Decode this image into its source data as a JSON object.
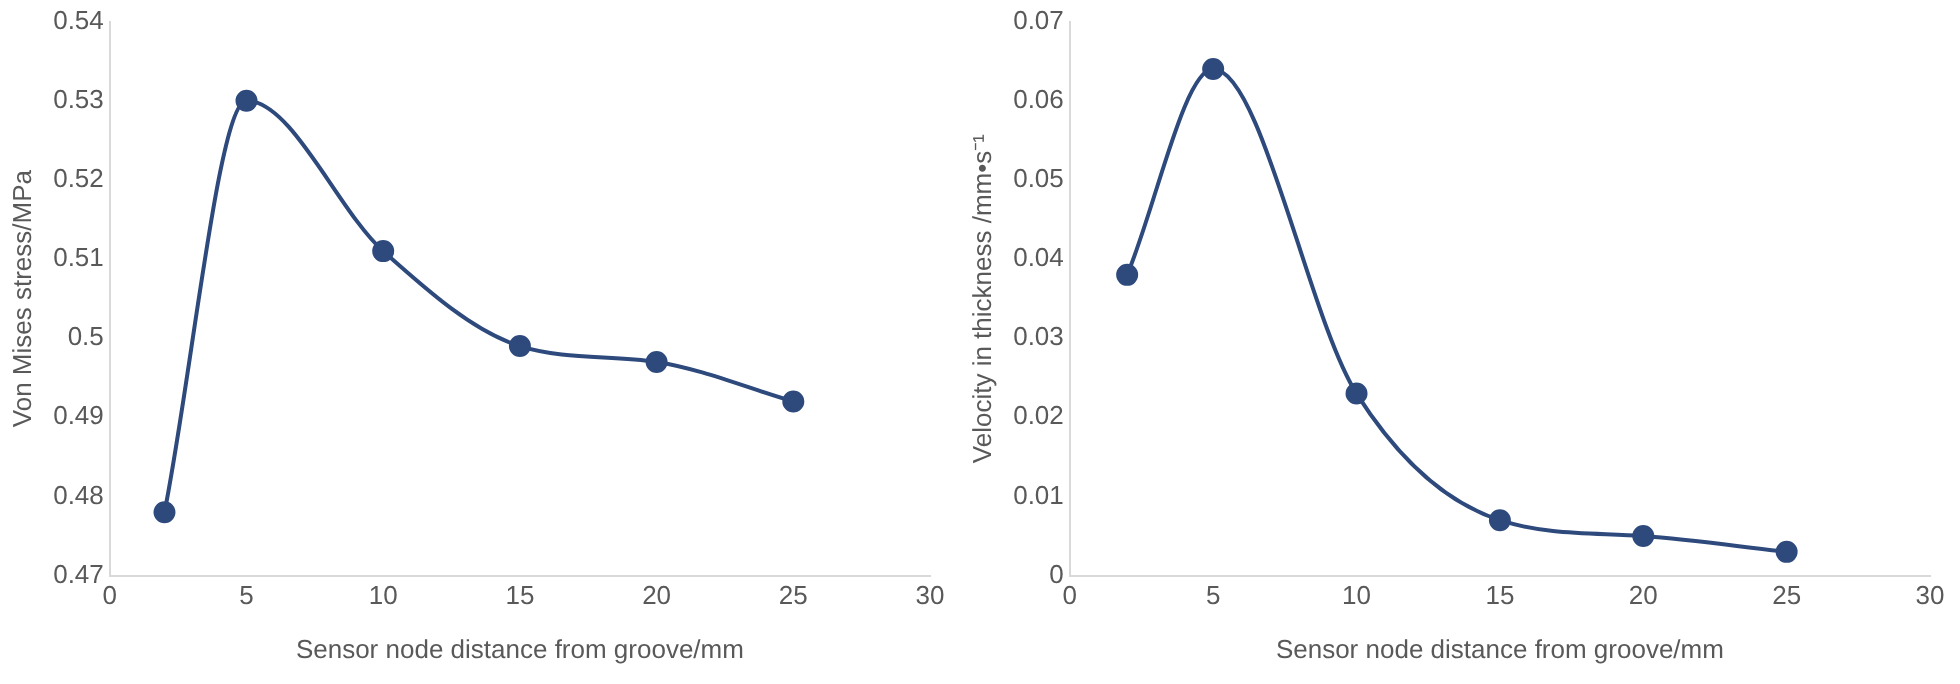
{
  "chart_data": [
    {
      "type": "line",
      "xlabel": "Sensor node distance from groove/mm",
      "ylabel": "Von Mises stress/MPa",
      "x": [
        2,
        5,
        10,
        15,
        20,
        25
      ],
      "values": [
        0.478,
        0.53,
        0.511,
        0.499,
        0.497,
        0.492
      ],
      "color": "#2e4a7d",
      "marker": "circle",
      "line_style": "solid",
      "grid": false,
      "xlim": [
        0,
        30
      ],
      "xticks": [
        0,
        5,
        10,
        15,
        20,
        25,
        30
      ],
      "ylim": [
        0.47,
        0.54
      ],
      "yticks": [
        0.47,
        0.48,
        0.49,
        0.5,
        0.51,
        0.52,
        0.53,
        0.54
      ]
    },
    {
      "type": "line",
      "xlabel": "Sensor node distance from groove/mm",
      "ylabel": "Velocity in thickness /mm•s⁻¹",
      "x": [
        2,
        5,
        10,
        15,
        20,
        25
      ],
      "values": [
        0.038,
        0.064,
        0.023,
        0.007,
        0.005,
        0.003
      ],
      "color": "#2e4a7d",
      "marker": "circle",
      "line_style": "solid",
      "grid": false,
      "xlim": [
        0,
        30
      ],
      "xticks": [
        0,
        5,
        10,
        15,
        20,
        25,
        30
      ],
      "ylim": [
        0,
        0.07
      ],
      "yticks": [
        0,
        0.01,
        0.02,
        0.03,
        0.04,
        0.05,
        0.06,
        0.07
      ]
    }
  ]
}
